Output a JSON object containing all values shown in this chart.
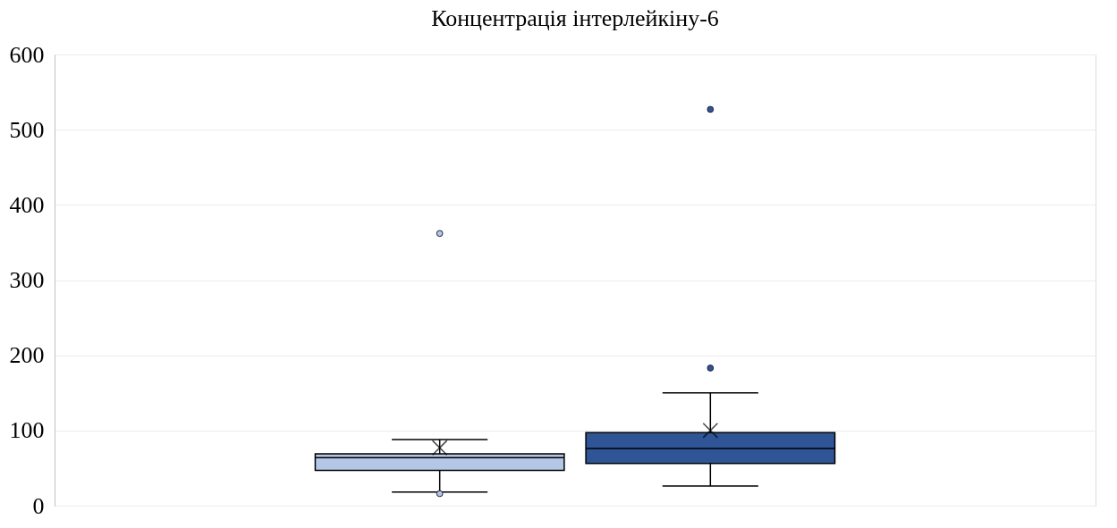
{
  "chart_data": {
    "type": "box",
    "title": "Концентрація інтерлейкіну-6",
    "categories": [
      null
    ],
    "series": [
      {
        "color": "#b4c7e7",
        "boxes": [
          {
            "low": 18,
            "q1": 47,
            "median": 64,
            "q3": 69,
            "high": 88,
            "mean": 77,
            "outliers": [
              362,
              16
            ]
          }
        ]
      },
      {
        "color": "#2f5597",
        "boxes": [
          {
            "low": 26,
            "q1": 56,
            "median": 76,
            "q3": 97,
            "high": 150,
            "mean": 100,
            "outliers": [
              183,
              527
            ]
          }
        ]
      }
    ],
    "ylim": [
      0,
      600
    ],
    "yticks": [
      0,
      100,
      200,
      300,
      400,
      500,
      600
    ],
    "grid": "y"
  }
}
